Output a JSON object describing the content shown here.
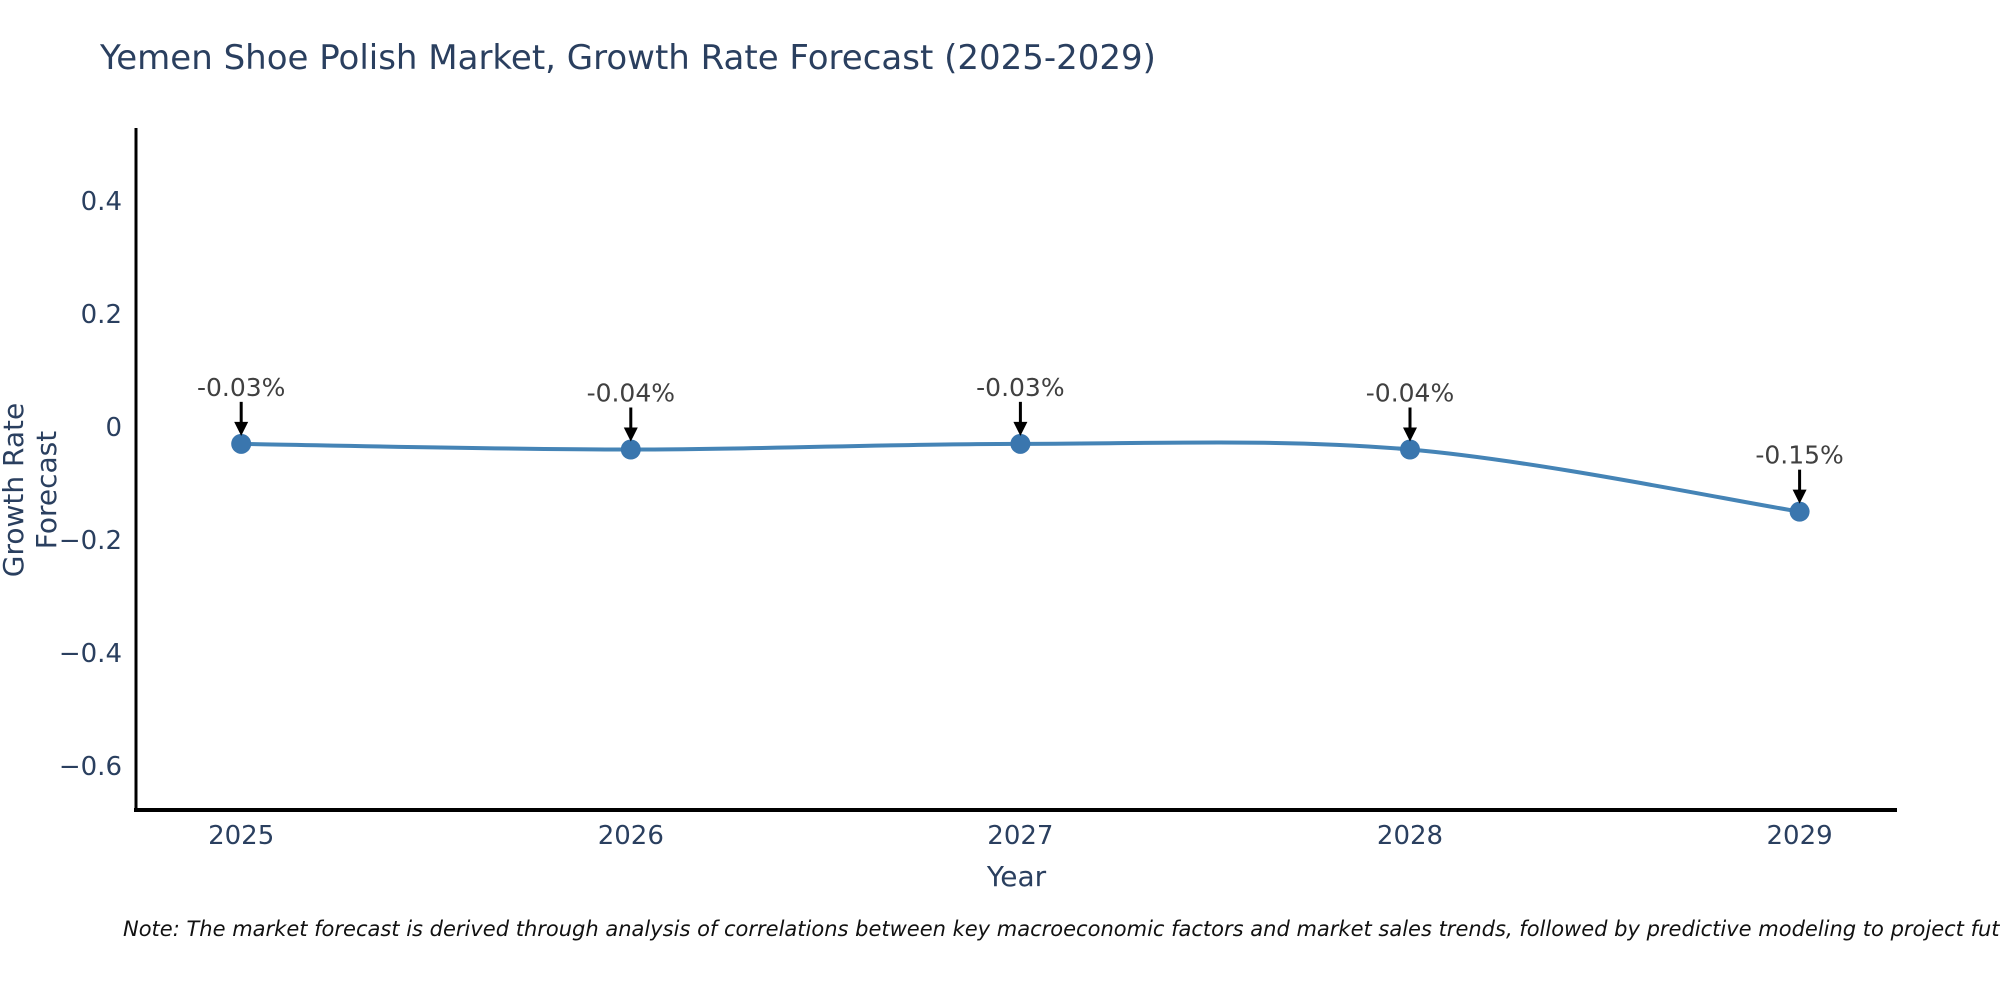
{
  "note": "Note: The market forecast is derived through analysis of correlations between key macroeconomic factors and market sales trends, followed by predictive modeling to project future sales.",
  "chart_data": {
    "type": "line",
    "title": "Yemen Shoe Polish Market, Growth Rate Forecast (2025-2029)",
    "xlabel": "Year",
    "ylabel": "Growth Rate Forecast",
    "x": [
      2025,
      2026,
      2027,
      2028,
      2029
    ],
    "series": [
      {
        "name": "Growth Rate Forecast",
        "values": [
          -0.03,
          -0.04,
          -0.03,
          -0.04,
          -0.15
        ],
        "point_labels": [
          "-0.03%",
          "-0.04%",
          "-0.03%",
          "-0.04%",
          "-0.15%"
        ]
      }
    ],
    "x_tick_labels": [
      "2025",
      "2026",
      "2027",
      "2028",
      "2029"
    ],
    "y_tick_values": [
      0.4,
      0.2,
      0,
      -0.2,
      -0.4,
      -0.6
    ],
    "y_tick_labels": [
      "0.4",
      "0.2",
      "0",
      "−0.2",
      "−0.4",
      "−0.6"
    ],
    "xlim": [
      2024.73,
      2029.25
    ],
    "ylim": [
      -0.678,
      0.529
    ],
    "grid": false,
    "legend": "none",
    "line_shape": "spline",
    "annotations_arrow": true,
    "colors": {
      "line": "#4584b6",
      "marker": "#3a76ae",
      "axis": "#000000",
      "tick_text": "#2a3f5f",
      "title_text": "#2a3f5f",
      "annotation_text": "#404040",
      "arrow": "#000000",
      "background": "#ffffff"
    }
  }
}
